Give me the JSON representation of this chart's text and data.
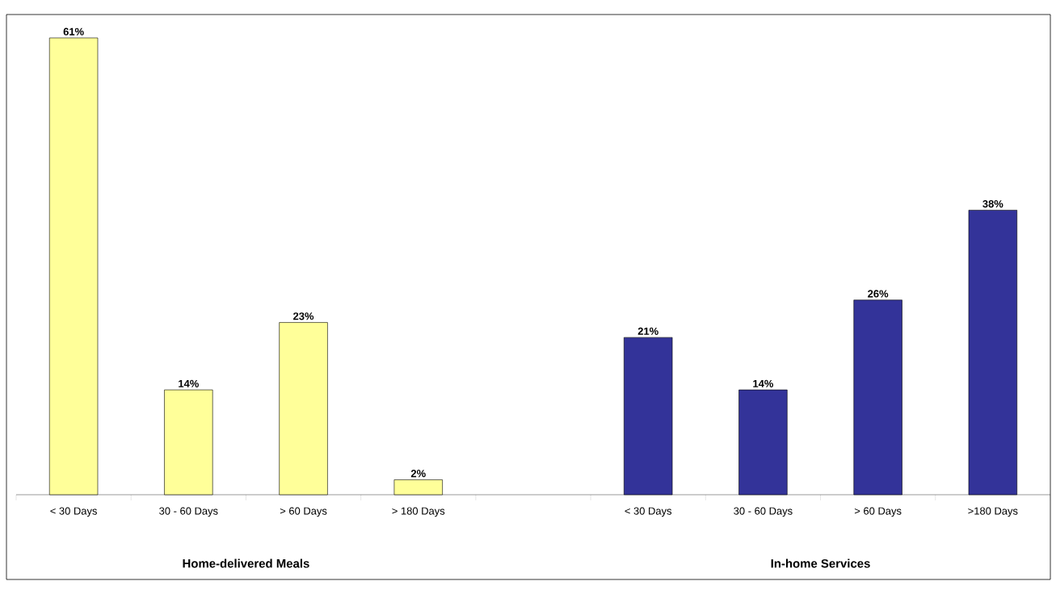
{
  "chart_data": {
    "type": "bar",
    "categories": [
      "< 30 Days",
      "30 - 60 Days",
      "> 60 Days",
      "> 180 Days",
      null,
      "< 30 Days",
      "30 - 60 Days",
      "> 60 Days",
      ">180 Days"
    ],
    "values": [
      61,
      14,
      23,
      2,
      null,
      21,
      14,
      26,
      38
    ],
    "colors": [
      "#ffff99",
      "#ffff99",
      "#ffff99",
      "#ffff99",
      null,
      "#333399",
      "#333399",
      "#333399",
      "#333399"
    ],
    "value_labels": [
      "61%",
      "14%",
      "23%",
      "2%",
      null,
      "21%",
      "14%",
      "26%",
      "38%"
    ],
    "annotations": [
      "Home-delivered Meals",
      "In-home Services"
    ]
  }
}
